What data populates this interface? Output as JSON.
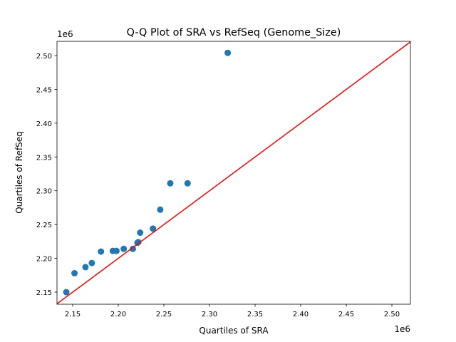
{
  "chart_data": {
    "type": "scatter",
    "title": "Q-Q Plot of SRA vs RefSeq (Genome_Size)",
    "xlabel": "Quartiles of SRA",
    "ylabel": "Quartiles of RefSeq",
    "x_offset_label": "1e6",
    "y_offset_label": "1e6",
    "xlim": [
      2.1328,
      2.5203
    ],
    "ylim": [
      2.1321,
      2.5211
    ],
    "x_ticks": [
      "2.15",
      "2.20",
      "2.25",
      "2.30",
      "2.35",
      "2.40",
      "2.45",
      "2.50"
    ],
    "y_ticks": [
      "2.15",
      "2.20",
      "2.25",
      "2.30",
      "2.35",
      "2.40",
      "2.45",
      "2.50"
    ],
    "grid": false,
    "point_color": "#1f77b4",
    "line_color": "#ff0000",
    "reference_line": "y = x",
    "points": [
      [
        2.143,
        2.15
      ],
      [
        2.152,
        2.178
      ],
      [
        2.164,
        2.187
      ],
      [
        2.171,
        2.193
      ],
      [
        2.181,
        2.21
      ],
      [
        2.194,
        2.211
      ],
      [
        2.198,
        2.211
      ],
      [
        2.206,
        2.214
      ],
      [
        2.216,
        2.214
      ],
      [
        2.221,
        2.223
      ],
      [
        2.222,
        2.224
      ],
      [
        2.224,
        2.238
      ],
      [
        2.238,
        2.244
      ],
      [
        2.246,
        2.272
      ],
      [
        2.257,
        2.311
      ],
      [
        2.276,
        2.311
      ],
      [
        2.32,
        2.504
      ]
    ]
  }
}
